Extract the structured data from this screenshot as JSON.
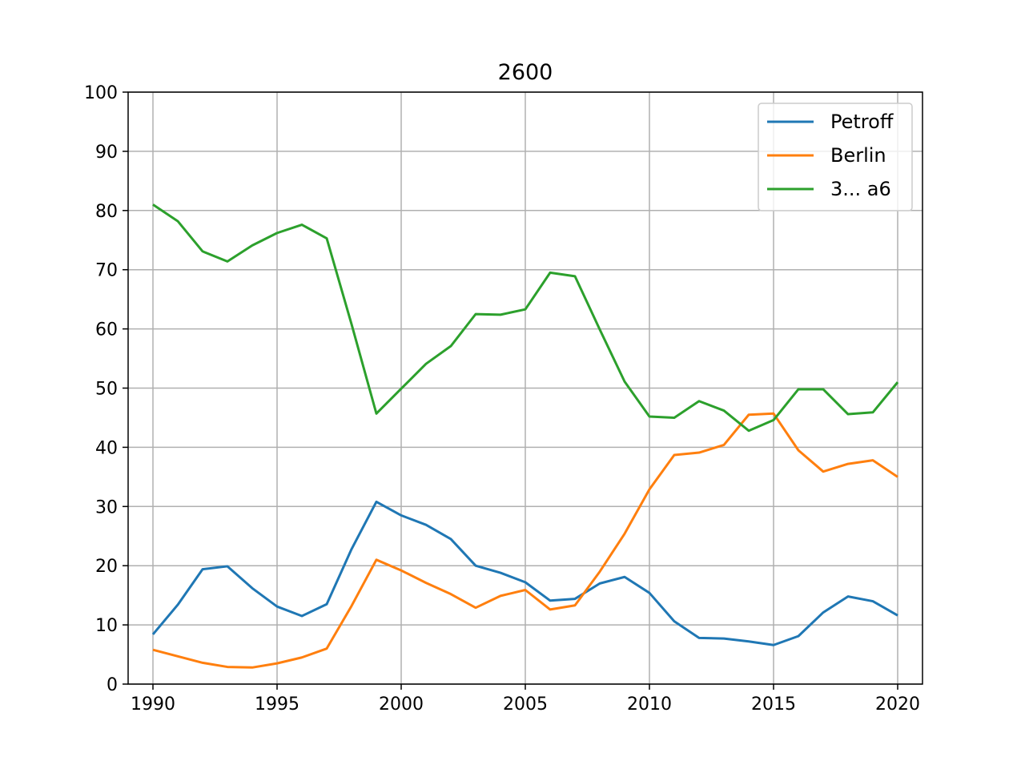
{
  "chart_data": {
    "type": "line",
    "title": "2600",
    "xlabel": "",
    "ylabel": "",
    "xlim": [
      1989,
      2021
    ],
    "ylim": [
      0,
      100
    ],
    "xticks": [
      1990,
      1995,
      2000,
      2005,
      2010,
      2015,
      2020
    ],
    "yticks": [
      0,
      10,
      20,
      30,
      40,
      50,
      60,
      70,
      80,
      90,
      100
    ],
    "grid": true,
    "legend_position": "top-right",
    "x": [
      1990,
      1991,
      1992,
      1993,
      1994,
      1995,
      1996,
      1997,
      1998,
      1999,
      2000,
      2001,
      2002,
      2003,
      2004,
      2005,
      2006,
      2007,
      2008,
      2009,
      2010,
      2011,
      2012,
      2013,
      2014,
      2015,
      2016,
      2017,
      2018,
      2019,
      2020
    ],
    "series": [
      {
        "name": "Petroff",
        "color": "#1f77b4",
        "values": [
          8.4,
          13.4,
          19.4,
          19.9,
          16.2,
          13.1,
          11.5,
          13.5,
          22.8,
          30.8,
          28.5,
          26.9,
          24.5,
          20.0,
          18.8,
          17.2,
          14.1,
          14.4,
          17.0,
          18.1,
          15.4,
          10.6,
          7.8,
          7.7,
          7.2,
          6.6,
          8.1,
          12.1,
          14.8,
          14.0,
          11.6
        ]
      },
      {
        "name": "Berlin",
        "color": "#ff7f0e",
        "values": [
          5.8,
          4.7,
          3.6,
          2.9,
          2.8,
          3.5,
          4.5,
          6.0,
          13.2,
          21.0,
          19.2,
          17.1,
          15.2,
          12.9,
          14.9,
          15.9,
          12.6,
          13.3,
          19.0,
          25.4,
          32.9,
          38.7,
          39.1,
          40.4,
          45.5,
          45.7,
          39.5,
          35.9,
          37.2,
          37.8,
          35.0
        ]
      },
      {
        "name": "3... a6",
        "color": "#2ca02c",
        "values": [
          81.0,
          78.2,
          73.1,
          71.4,
          74.1,
          76.2,
          77.6,
          75.3,
          60.8,
          45.7,
          49.9,
          54.1,
          57.1,
          62.5,
          62.4,
          63.3,
          69.5,
          68.9,
          59.9,
          51.1,
          45.2,
          45.0,
          47.8,
          46.2,
          42.8,
          44.6,
          49.8,
          49.8,
          45.6,
          45.9,
          51.0
        ]
      }
    ]
  }
}
